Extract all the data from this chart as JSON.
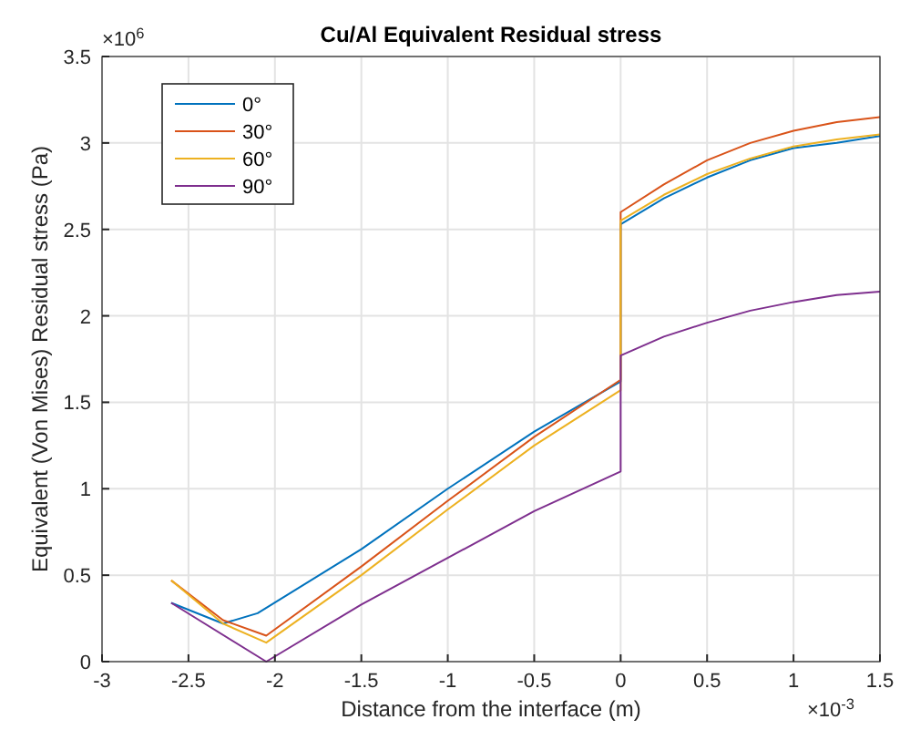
{
  "chart_data": {
    "type": "line",
    "title": "Cu/Al Equivalent Residual stress",
    "xlabel": "Distance from the interface (m)",
    "ylabel": "Equivalent (Von Mises) Residual stress (Pa)",
    "annotations": [
      "×10$^{6}$",
      "×10$^{-3}$"
    ],
    "xlim": [
      -3,
      1.5
    ],
    "xticks": [
      -3,
      -2.5,
      -2,
      -1.5,
      -1,
      -0.5,
      0,
      0.5,
      1,
      1.5
    ],
    "ylim": [
      0,
      3.5
    ],
    "yticks": [
      0,
      0.5,
      1,
      1.5,
      2,
      2.5,
      3,
      3.5
    ],
    "grid": true,
    "legend": "top left",
    "line_style": "solid",
    "marker": "none",
    "series": [
      {
        "name": "0°",
        "color": "#0072bd",
        "x": [
          -2.6,
          -2.3,
          -2.1,
          -1.5,
          -1,
          -0.5,
          0,
          0,
          0.25,
          0.5,
          0.75,
          1,
          1.25,
          1.5
        ],
        "values": [
          0.34,
          0.22,
          0.28,
          0.65,
          1,
          1.33,
          1.62,
          2.53,
          2.68,
          2.8,
          2.9,
          2.97,
          3.0,
          3.04
        ]
      },
      {
        "name": "30°",
        "color": "#d95319",
        "x": [
          -2.6,
          -2.3,
          -2.05,
          -1.5,
          -1,
          -0.5,
          0,
          0,
          0.25,
          0.5,
          0.75,
          1,
          1.25,
          1.5
        ],
        "values": [
          0.47,
          0.24,
          0.15,
          0.55,
          0.93,
          1.3,
          1.63,
          2.6,
          2.76,
          2.9,
          3,
          3.07,
          3.12,
          3.15
        ]
      },
      {
        "name": "60°",
        "color": "#edb120",
        "x": [
          -2.6,
          -2.3,
          -2.05,
          -1.5,
          -1,
          -0.5,
          0,
          0,
          0.25,
          0.5,
          0.75,
          1,
          1.25,
          1.5
        ],
        "values": [
          0.47,
          0.22,
          0.11,
          0.5,
          0.88,
          1.25,
          1.57,
          2.55,
          2.7,
          2.82,
          2.91,
          2.98,
          3.02,
          3.05
        ]
      },
      {
        "name": "90°",
        "color": "#7e2f8e",
        "x": [
          -2.6,
          -2.05,
          -1.5,
          -1,
          -0.5,
          0,
          0,
          0.25,
          0.5,
          0.75,
          1,
          1.25,
          1.5
        ],
        "values": [
          0.34,
          0,
          0.33,
          0.6,
          0.87,
          1.1,
          1.77,
          1.88,
          1.96,
          2.03,
          2.08,
          2.12,
          2.14
        ]
      }
    ]
  }
}
